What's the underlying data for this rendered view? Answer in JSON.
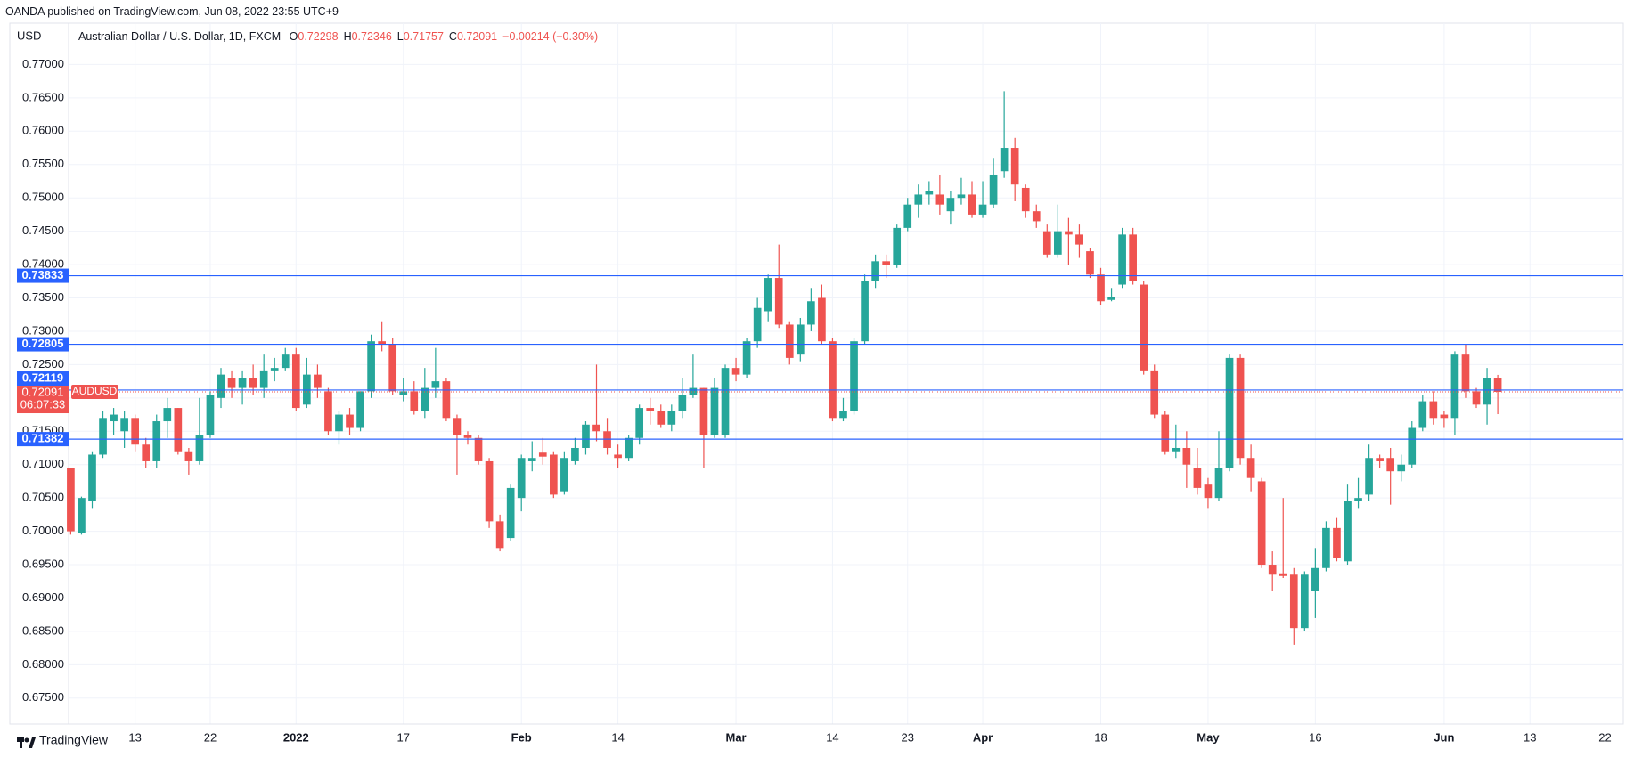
{
  "publisher": "OANDA published on TradingView.com, Jun 08, 2022 23:55 UTC+9",
  "brand": "TradingView",
  "chart_data": {
    "type": "candlestick",
    "currency": "USD",
    "title": "Australian Dollar / U.S. Dollar, 1D, FXCM",
    "legend_ohlc": [
      {
        "label": "O",
        "value": 0.72298
      },
      {
        "label": "H",
        "value": 0.72346
      },
      {
        "label": "L",
        "value": 0.71757
      },
      {
        "label": "C",
        "value": 0.72091
      }
    ],
    "change": "−0.00214 (−0.30%)",
    "up_color": "#26a69a",
    "down_color": "#ef5350",
    "grid": true,
    "open": [
      0.7095,
      0.6998,
      0.7045,
      0.7115,
      0.7165,
      0.715,
      0.717,
      0.713,
      0.7105,
      0.7165,
      0.7185,
      0.712,
      0.7105,
      0.7145,
      0.72,
      0.723,
      0.7215,
      0.723,
      0.7215,
      0.724,
      0.7245,
      0.7265,
      0.719,
      0.7235,
      0.721,
      0.715,
      0.7175,
      0.7155,
      0.721,
      0.7285,
      0.728,
      0.7205,
      0.721,
      0.718,
      0.7215,
      0.7225,
      0.717,
      0.7145,
      0.714,
      0.7105,
      0.7015,
      0.699,
      0.705,
      0.7105,
      0.7118,
      0.7115,
      0.706,
      0.7105,
      0.7125,
      0.716,
      0.715,
      0.7115,
      0.711,
      0.714,
      0.7185,
      0.718,
      0.716,
      0.718,
      0.7205,
      0.7215,
      0.7145,
      0.7145,
      0.7245,
      0.7235,
      0.7285,
      0.733,
      0.738,
      0.731,
      0.7265,
      0.731,
      0.735,
      0.7285,
      0.717,
      0.718,
      0.7285,
      0.7375,
      0.7405,
      0.74,
      0.7455,
      0.749,
      0.7505,
      0.7505,
      0.748,
      0.75,
      0.7505,
      0.7475,
      0.749,
      0.754,
      0.7575,
      0.7515,
      0.748,
      0.745,
      0.7415,
      0.745,
      0.7445,
      0.742,
      0.7385,
      0.7347,
      0.737,
      0.7445,
      0.737,
      0.724,
      0.7175,
      0.712,
      0.7125,
      0.7095,
      0.707,
      0.705,
      0.7095,
      0.726,
      0.711,
      0.7075,
      0.695,
      0.6937,
      0.6935,
      0.6855,
      0.691,
      0.6945,
      0.7005,
      0.6955,
      0.7045,
      0.7055,
      0.711,
      0.711,
      0.709,
      0.71,
      0.7155,
      0.7195,
      0.7175,
      0.717,
      0.7265,
      0.721,
      0.719,
      0.72298
    ],
    "high": [
      0.7095,
      0.7052,
      0.712,
      0.718,
      0.7185,
      0.718,
      0.7175,
      0.714,
      0.7175,
      0.72,
      0.7185,
      0.7125,
      0.72,
      0.721,
      0.7245,
      0.724,
      0.724,
      0.725,
      0.7265,
      0.726,
      0.7275,
      0.7275,
      0.726,
      0.725,
      0.7215,
      0.718,
      0.7185,
      0.721,
      0.7295,
      0.7315,
      0.729,
      0.723,
      0.7225,
      0.7245,
      0.7275,
      0.723,
      0.7175,
      0.715,
      0.7145,
      0.711,
      0.7025,
      0.707,
      0.7115,
      0.7135,
      0.714,
      0.712,
      0.712,
      0.714,
      0.7165,
      0.725,
      0.717,
      0.713,
      0.7145,
      0.719,
      0.72,
      0.719,
      0.719,
      0.723,
      0.7265,
      0.7215,
      0.723,
      0.725,
      0.726,
      0.729,
      0.735,
      0.7385,
      0.743,
      0.7315,
      0.732,
      0.7365,
      0.737,
      0.729,
      0.72,
      0.729,
      0.7385,
      0.7415,
      0.7415,
      0.746,
      0.75,
      0.752,
      0.7525,
      0.7535,
      0.751,
      0.753,
      0.7525,
      0.7525,
      0.756,
      0.766,
      0.759,
      0.752,
      0.749,
      0.746,
      0.749,
      0.747,
      0.746,
      0.7425,
      0.7395,
      0.7365,
      0.7455,
      0.7455,
      0.7375,
      0.725,
      0.718,
      0.716,
      0.715,
      0.7125,
      0.708,
      0.715,
      0.7265,
      0.7265,
      0.713,
      0.708,
      0.697,
      0.705,
      0.6945,
      0.694,
      0.6975,
      0.7015,
      0.702,
      0.707,
      0.708,
      0.713,
      0.7115,
      0.7125,
      0.7115,
      0.7165,
      0.7205,
      0.721,
      0.718,
      0.727,
      0.728,
      0.7215,
      0.7245,
      0.72346
    ],
    "low": [
      0.6995,
      0.6995,
      0.7035,
      0.711,
      0.7145,
      0.7125,
      0.712,
      0.7095,
      0.7095,
      0.714,
      0.7115,
      0.7085,
      0.71,
      0.714,
      0.7185,
      0.72,
      0.719,
      0.7205,
      0.72,
      0.7225,
      0.724,
      0.718,
      0.7185,
      0.72,
      0.7145,
      0.713,
      0.7145,
      0.715,
      0.72,
      0.727,
      0.7205,
      0.7195,
      0.7175,
      0.717,
      0.72,
      0.7165,
      0.7085,
      0.713,
      0.71,
      0.7005,
      0.697,
      0.6985,
      0.703,
      0.709,
      0.71,
      0.705,
      0.7055,
      0.71,
      0.7115,
      0.7135,
      0.7115,
      0.7095,
      0.7105,
      0.713,
      0.716,
      0.7155,
      0.715,
      0.717,
      0.72,
      0.7095,
      0.714,
      0.714,
      0.7225,
      0.723,
      0.7275,
      0.7315,
      0.7305,
      0.725,
      0.7255,
      0.73,
      0.728,
      0.7165,
      0.7165,
      0.7175,
      0.728,
      0.7365,
      0.738,
      0.7395,
      0.745,
      0.747,
      0.749,
      0.7475,
      0.746,
      0.749,
      0.747,
      0.747,
      0.7485,
      0.753,
      0.7495,
      0.747,
      0.7455,
      0.741,
      0.741,
      0.74,
      0.741,
      0.738,
      0.734,
      0.7345,
      0.7365,
      0.737,
      0.7235,
      0.717,
      0.7115,
      0.711,
      0.7065,
      0.7055,
      0.7035,
      0.7045,
      0.709,
      0.71,
      0.706,
      0.6945,
      0.691,
      0.693,
      0.683,
      0.685,
      0.687,
      0.694,
      0.6955,
      0.695,
      0.7035,
      0.7045,
      0.7095,
      0.704,
      0.7075,
      0.7095,
      0.715,
      0.716,
      0.7155,
      0.7145,
      0.72,
      0.7185,
      0.716,
      0.71757
    ],
    "close": [
      0.7,
      0.705,
      0.7115,
      0.717,
      0.7175,
      0.717,
      0.713,
      0.7105,
      0.7165,
      0.7185,
      0.712,
      0.7105,
      0.7145,
      0.7205,
      0.7235,
      0.7215,
      0.723,
      0.7215,
      0.724,
      0.7245,
      0.7265,
      0.7185,
      0.7235,
      0.7215,
      0.715,
      0.7175,
      0.7155,
      0.721,
      0.7285,
      0.728,
      0.721,
      0.721,
      0.718,
      0.7215,
      0.7225,
      0.717,
      0.7145,
      0.714,
      0.7105,
      0.7015,
      0.6975,
      0.7065,
      0.711,
      0.711,
      0.7112,
      0.7055,
      0.711,
      0.7125,
      0.716,
      0.715,
      0.7125,
      0.711,
      0.714,
      0.7185,
      0.718,
      0.716,
      0.718,
      0.7205,
      0.7215,
      0.7145,
      0.7215,
      0.7245,
      0.7235,
      0.7285,
      0.7335,
      0.738,
      0.731,
      0.726,
      0.731,
      0.7345,
      0.7285,
      0.717,
      0.718,
      0.7285,
      0.7375,
      0.7405,
      0.74,
      0.7455,
      0.749,
      0.7505,
      0.751,
      0.749,
      0.75,
      0.7505,
      0.7475,
      0.749,
      0.7535,
      0.7575,
      0.752,
      0.748,
      0.7465,
      0.7415,
      0.745,
      0.7445,
      0.743,
      0.7385,
      0.7345,
      0.7352,
      0.7445,
      0.7375,
      0.724,
      0.7175,
      0.712,
      0.7125,
      0.71,
      0.7065,
      0.705,
      0.7095,
      0.726,
      0.711,
      0.708,
      0.695,
      0.6935,
      0.6933,
      0.6855,
      0.6935,
      0.6945,
      0.7005,
      0.696,
      0.7045,
      0.705,
      0.711,
      0.7105,
      0.709,
      0.71,
      0.7155,
      0.7195,
      0.717,
      0.717,
      0.7265,
      0.721,
      0.719,
      0.723,
      0.72091
    ],
    "xlim": [
      -0.2,
      144.7
    ],
    "xticks": [
      {
        "value": 6,
        "label": "13"
      },
      {
        "value": 13,
        "label": "22"
      },
      {
        "value": 21,
        "label": "2022"
      },
      {
        "value": 31,
        "label": "17"
      },
      {
        "value": 42,
        "label": "Feb"
      },
      {
        "value": 51,
        "label": "14"
      },
      {
        "value": 62,
        "label": "Mar"
      },
      {
        "value": 71,
        "label": "14"
      },
      {
        "value": 78,
        "label": "23"
      },
      {
        "value": 85,
        "label": "Apr"
      },
      {
        "value": 96,
        "label": "18"
      },
      {
        "value": 106,
        "label": "May"
      },
      {
        "value": 116,
        "label": "16"
      },
      {
        "value": 128,
        "label": "Jun"
      },
      {
        "value": 136,
        "label": "13"
      },
      {
        "value": 143,
        "label": "22"
      }
    ],
    "ylim": [
      0.6711,
      0.7762
    ],
    "yticks": [
      {
        "value": 0.675,
        "label": "0.67500"
      },
      {
        "value": 0.68,
        "label": "0.68000"
      },
      {
        "value": 0.685,
        "label": "0.68500"
      },
      {
        "value": 0.69,
        "label": "0.69000"
      },
      {
        "value": 0.695,
        "label": "0.69500"
      },
      {
        "value": 0.7,
        "label": "0.70000"
      },
      {
        "value": 0.705,
        "label": "0.70500"
      },
      {
        "value": 0.71,
        "label": "0.71000"
      },
      {
        "value": 0.715,
        "label": "0.71500"
      },
      {
        "value": 0.72,
        "label": "0.72000"
      },
      {
        "value": 0.725,
        "label": "0.72500"
      },
      {
        "value": 0.73,
        "label": "0.73000"
      },
      {
        "value": 0.735,
        "label": "0.73500"
      },
      {
        "value": 0.74,
        "label": "0.74000"
      },
      {
        "value": 0.745,
        "label": "0.74500"
      },
      {
        "value": 0.75,
        "label": "0.75000"
      },
      {
        "value": 0.755,
        "label": "0.75500"
      },
      {
        "value": 0.76,
        "label": "0.76000"
      },
      {
        "value": 0.765,
        "label": "0.76500"
      },
      {
        "value": 0.77,
        "label": "0.77000"
      }
    ],
    "levels": [
      0.73833,
      0.72805,
      0.72119,
      0.71382
    ],
    "level_color": "#2962ff",
    "last_price": {
      "value": 0.72091,
      "countdown": "06:07:33",
      "symbol": "AUDUSD"
    }
  }
}
